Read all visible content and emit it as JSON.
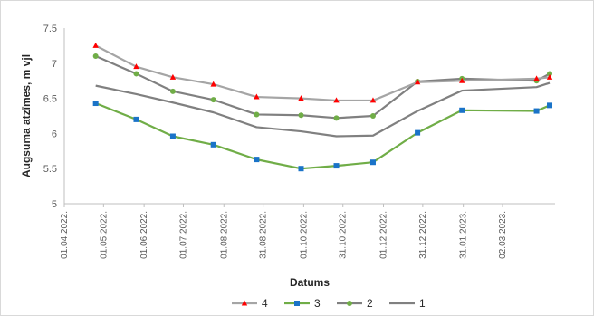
{
  "chart_data": {
    "type": "line",
    "xlabel": "Datums",
    "ylabel": "Augsuma atzīmes, m vjl",
    "ylim": [
      5,
      7.5
    ],
    "yticks": [
      "5",
      "5.5",
      "6",
      "6.5",
      "7",
      "7.5"
    ],
    "x_tick_labels": [
      "01.04.2022.",
      "01.05.2022.",
      "01.06.2022.",
      "01.07.2022.",
      "01.08.2022.",
      "31.08.2022.",
      "01.10.2022.",
      "31.10.2022.",
      "01.12.2022.",
      "31.12.2022.",
      "31.01.2023.",
      "02.03.2023."
    ],
    "grid": false,
    "legend_position": "bottom",
    "series": [
      {
        "name": "4",
        "color": "#a5a5a5",
        "marker": "triangle",
        "marker_color": "#ff0000",
        "x": [
          "2022-04-25",
          "2022-05-26",
          "2022-06-23",
          "2022-07-24",
          "2022-08-26",
          "2022-09-29",
          "2022-10-26",
          "2022-11-23",
          "2022-12-27",
          "2023-01-30",
          "2023-03-28",
          "2023-04-07"
        ],
        "y": [
          7.25,
          6.95,
          6.8,
          6.7,
          6.52,
          6.5,
          6.47,
          6.47,
          6.73,
          6.75,
          6.78,
          6.8
        ]
      },
      {
        "name": "3",
        "color": "#70ad47",
        "marker": "square",
        "marker_color": "#1a73c8",
        "x": [
          "2022-04-25",
          "2022-05-26",
          "2022-06-23",
          "2022-07-24",
          "2022-08-26",
          "2022-09-29",
          "2022-10-26",
          "2022-11-23",
          "2022-12-27",
          "2023-01-30",
          "2023-03-28",
          "2023-04-07"
        ],
        "y": [
          6.43,
          6.2,
          5.96,
          5.84,
          5.63,
          5.5,
          5.54,
          5.59,
          6.01,
          6.33,
          6.32,
          6.4
        ]
      },
      {
        "name": "2",
        "color": "#808080",
        "marker": "circle",
        "marker_color": "#70ad47",
        "x": [
          "2022-04-25",
          "2022-05-26",
          "2022-06-23",
          "2022-07-24",
          "2022-08-26",
          "2022-09-29",
          "2022-10-26",
          "2022-11-23",
          "2022-12-27",
          "2023-01-30",
          "2023-03-28",
          "2023-04-07"
        ],
        "y": [
          7.1,
          6.85,
          6.6,
          6.48,
          6.27,
          6.26,
          6.22,
          6.25,
          6.74,
          6.78,
          6.75,
          6.85
        ]
      },
      {
        "name": "1",
        "color": "#808080",
        "marker": "none",
        "x": [
          "2022-04-25",
          "2022-05-26",
          "2022-06-23",
          "2022-07-24",
          "2022-08-26",
          "2022-09-29",
          "2022-10-26",
          "2022-11-23",
          "2022-12-27",
          "2023-01-30",
          "2023-03-28",
          "2023-04-07"
        ],
        "y": [
          6.68,
          6.56,
          6.44,
          6.3,
          6.09,
          6.03,
          5.96,
          5.97,
          6.32,
          6.61,
          6.66,
          6.72
        ]
      }
    ]
  }
}
